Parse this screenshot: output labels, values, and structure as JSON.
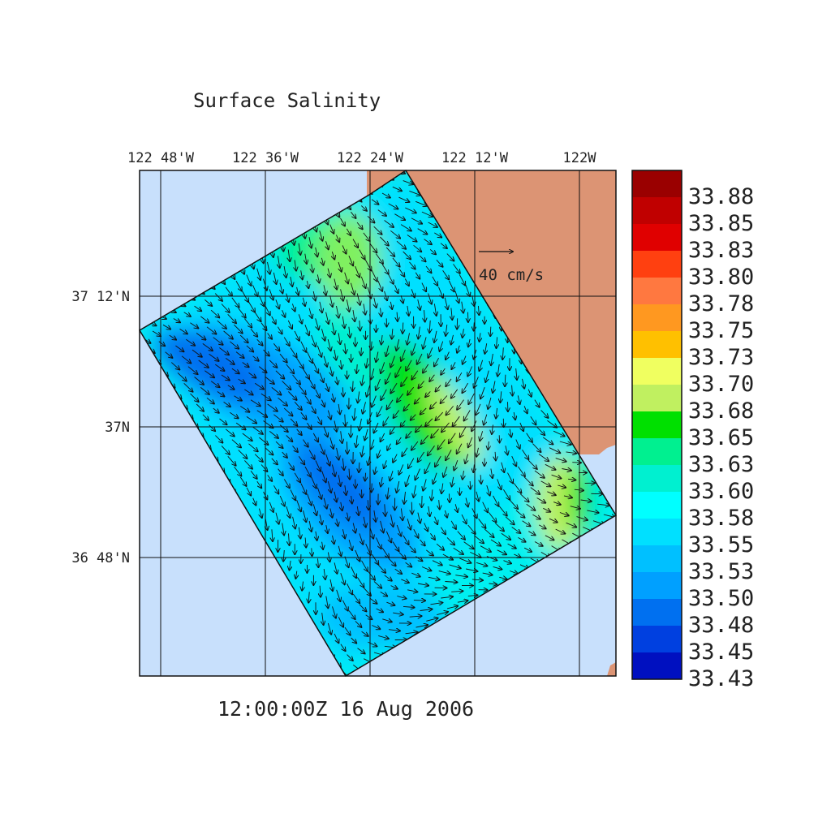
{
  "title": "Surface Salinity",
  "timestamp": "12:00:00Z  16 Aug 2006",
  "lon_ticks": [
    {
      "label": "122 48'W",
      "lon": -122.8
    },
    {
      "label": "122 36'W",
      "lon": -122.6
    },
    {
      "label": "122 24'W",
      "lon": -122.4
    },
    {
      "label": "122 12'W",
      "lon": -122.2
    },
    {
      "label": "122W",
      "lon": -122.0
    }
  ],
  "lat_ticks": [
    {
      "label": "37 12'N",
      "lat": 37.2
    },
    {
      "label": "37N",
      "lat": 37.0
    },
    {
      "label": "36 48'N",
      "lat": 36.8
    }
  ],
  "vector_scale": {
    "label": "40 cm/s",
    "speed_cm_s": 40
  },
  "colorbar": {
    "levels": [
      "33.88",
      "33.85",
      "33.83",
      "33.80",
      "33.78",
      "33.75",
      "33.73",
      "33.70",
      "33.68",
      "33.65",
      "33.63",
      "33.60",
      "33.58",
      "33.55",
      "33.53",
      "33.50",
      "33.48",
      "33.45",
      "33.43"
    ],
    "colors": [
      "#9a0000",
      "#c00000",
      "#e00000",
      "#ff4010",
      "#ff7840",
      "#ff9820",
      "#ffc000",
      "#f0ff60",
      "#c0f060",
      "#00e000",
      "#00f090",
      "#00f0d0",
      "#00ffff",
      "#00e0ff",
      "#00c0ff",
      "#00a0ff",
      "#0070f0",
      "#0040e0",
      "#0010c0"
    ]
  },
  "map_colors": {
    "ocean": "#c8e0fc",
    "land": "#dc9474"
  }
}
